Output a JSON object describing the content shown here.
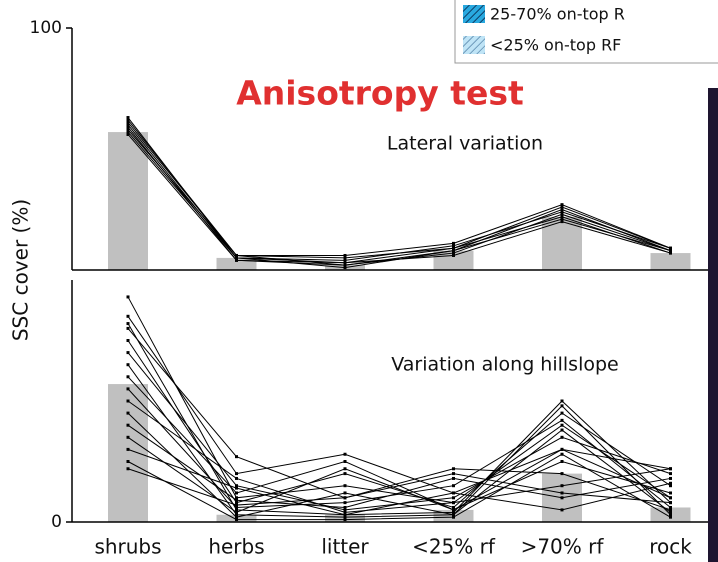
{
  "chart_data": [
    {
      "type": "line",
      "title": "Anisotropy test",
      "ylabel": "SSC cover (%)",
      "annotation": "Lateral variation",
      "legend": [
        "25-70% on-top R",
        "<25% on-top RF"
      ],
      "ylim": [
        0,
        100
      ],
      "yticks": [
        100
      ],
      "bars": {
        "color": "#c0c0c0",
        "values": [
          57,
          5,
          2,
          8,
          22,
          7
        ]
      },
      "series": [
        {
          "color": "#000000",
          "values": [
            63,
            5,
            3,
            9,
            26,
            9
          ]
        },
        {
          "color": "#000000",
          "values": [
            61,
            6,
            2,
            8,
            25,
            8
          ]
        },
        {
          "color": "#000000",
          "values": [
            60,
            5,
            4,
            10,
            24,
            9
          ]
        },
        {
          "color": "#000000",
          "values": [
            59,
            4,
            2,
            7,
            23,
            8
          ]
        },
        {
          "color": "#000000",
          "values": [
            58,
            6,
            5,
            9,
            22,
            7
          ]
        },
        {
          "color": "#000000",
          "values": [
            57,
            5,
            1,
            8,
            21,
            8
          ]
        },
        {
          "color": "#000000",
          "values": [
            56,
            4,
            3,
            6,
            20,
            7
          ]
        },
        {
          "color": "#000000",
          "values": [
            62,
            6,
            6,
            11,
            27,
            9
          ]
        }
      ]
    },
    {
      "type": "line",
      "annotation": "Variation along hillslope",
      "categories": [
        "shrubs",
        "herbs",
        "litter",
        "<25% rf",
        ">70% rf",
        "rock"
      ],
      "ylim": [
        0,
        100
      ],
      "yticks": [
        0
      ],
      "bars": {
        "color": "#c0c0c0",
        "values": [
          57,
          3,
          3,
          5,
          20,
          6
        ]
      },
      "series": [
        {
          "color": "#000000",
          "values": [
            93,
            10,
            15,
            8,
            40,
            10
          ]
        },
        {
          "color": "#000000",
          "values": [
            85,
            20,
            28,
            12,
            30,
            22
          ]
        },
        {
          "color": "#000000",
          "values": [
            82,
            5,
            3,
            4,
            50,
            8
          ]
        },
        {
          "color": "#000000",
          "values": [
            80,
            27,
            10,
            22,
            20,
            5
          ]
        },
        {
          "color": "#000000",
          "values": [
            75,
            8,
            20,
            6,
            45,
            15
          ]
        },
        {
          "color": "#000000",
          "values": [
            70,
            15,
            5,
            10,
            35,
            20
          ]
        },
        {
          "color": "#000000",
          "values": [
            65,
            3,
            2,
            3,
            48,
            3
          ]
        },
        {
          "color": "#000000",
          "values": [
            60,
            12,
            25,
            5,
            25,
            12
          ]
        },
        {
          "color": "#000000",
          "values": [
            55,
            6,
            8,
            15,
            42,
            6
          ]
        },
        {
          "color": "#000000",
          "values": [
            50,
            18,
            4,
            8,
            15,
            22
          ]
        },
        {
          "color": "#000000",
          "values": [
            45,
            2,
            12,
            3,
            38,
            4
          ]
        },
        {
          "color": "#000000",
          "values": [
            40,
            9,
            6,
            18,
            10,
            18
          ]
        },
        {
          "color": "#000000",
          "values": [
            35,
            4,
            22,
            5,
            30,
            10
          ]
        },
        {
          "color": "#000000",
          "values": [
            30,
            14,
            3,
            12,
            5,
            16
          ]
        },
        {
          "color": "#000000",
          "values": [
            25,
            1,
            1,
            2,
            28,
            2
          ]
        },
        {
          "color": "#000000",
          "values": [
            22,
            7,
            10,
            20,
            12,
            8
          ]
        }
      ]
    }
  ]
}
